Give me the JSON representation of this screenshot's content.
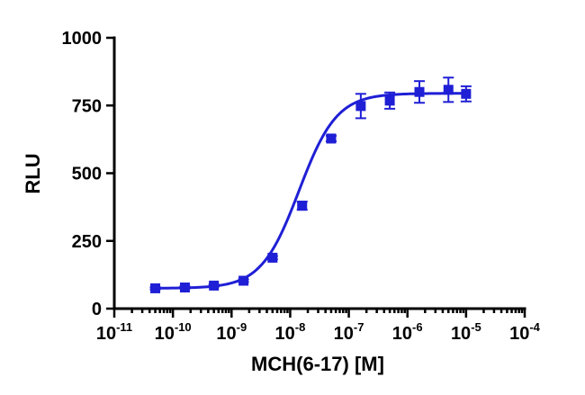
{
  "chart_data": {
    "type": "scatter",
    "title": "",
    "xlabel": "MCH(6-17) [M]",
    "ylabel": "RLU",
    "xscale": "log",
    "xlim": [
      1e-11,
      0.0001
    ],
    "ylim": [
      0,
      1000
    ],
    "x_ticks": [
      {
        "base": "10",
        "exp": "-11"
      },
      {
        "base": "10",
        "exp": "-10"
      },
      {
        "base": "10",
        "exp": "-9"
      },
      {
        "base": "10",
        "exp": "-8"
      },
      {
        "base": "10",
        "exp": "-7"
      },
      {
        "base": "10",
        "exp": "-6"
      },
      {
        "base": "10",
        "exp": "-5"
      },
      {
        "base": "10",
        "exp": "-4"
      }
    ],
    "y_ticks": [
      "0",
      "250",
      "500",
      "750",
      "1000"
    ],
    "grid": false,
    "legend": "none",
    "color": "#1f1fd6",
    "series": [
      {
        "x": [
          5e-11,
          1.6e-10,
          5e-10,
          1.6e-09,
          5e-09,
          1.6e-08,
          5e-08,
          1.6e-07,
          5e-07,
          1.6e-06,
          5e-06,
          1e-05
        ],
        "y": [
          75,
          78,
          85,
          103,
          188,
          380,
          628,
          748,
          768,
          800,
          808,
          793
        ],
        "error": [
          4,
          4,
          4,
          5,
          6,
          15,
          10,
          45,
          30,
          40,
          45,
          28
        ]
      }
    ],
    "fit": {
      "model": "4PL",
      "bottom": 75,
      "top": 795,
      "log_ec50": -7.85,
      "hill": 1.35
    }
  }
}
